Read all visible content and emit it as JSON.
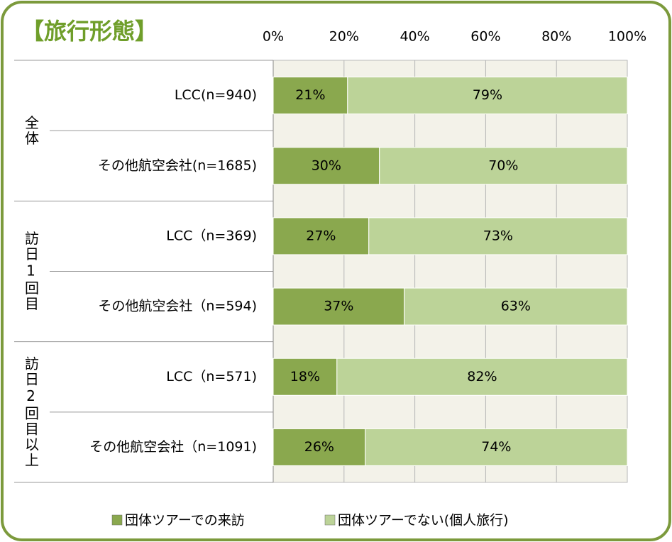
{
  "chart_data": {
    "type": "stacked-bar-horizontal",
    "title": "【旅行形態】",
    "groups": [
      "全体",
      "訪日1回目",
      "訪日2回目以上"
    ],
    "categories": [
      "LCC(n=940)",
      "その他航空会社(n=1685)",
      "LCC（n=369)",
      "その他航空会社（n=594)",
      "LCC（n=571)",
      "その他航空会社（n=1091)"
    ],
    "series": [
      {
        "name": "団体ツアーでの来訪",
        "color": "#8aa84e",
        "values": [
          21,
          30,
          27,
          37,
          18,
          26
        ],
        "value_labels": [
          "21%",
          "30%",
          "27%",
          "37%",
          "18%",
          "26%"
        ]
      },
      {
        "name": "団体ツアーでない(個人旅行)",
        "color": "#bcd398",
        "values": [
          79,
          70,
          73,
          63,
          82,
          74
        ],
        "value_labels": [
          "79%",
          "70%",
          "73%",
          "63%",
          "82%",
          "74%"
        ]
      }
    ],
    "xlim": [
      0,
      100
    ],
    "xticks": [
      {
        "value": 0,
        "label": "0%"
      },
      {
        "value": 20,
        "label": "20%"
      },
      {
        "value": 40,
        "label": "40%"
      },
      {
        "value": 60,
        "label": "60%"
      },
      {
        "value": 80,
        "label": "80%"
      },
      {
        "value": 100,
        "label": "100%"
      }
    ],
    "grid": true,
    "legend": "bottom"
  }
}
